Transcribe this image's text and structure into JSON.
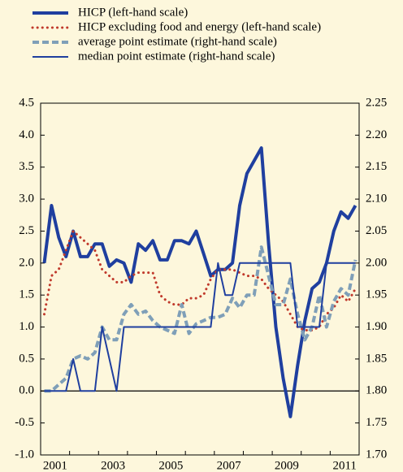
{
  "chart_data": {
    "type": "line",
    "categories": [
      null,
      "2001",
      null,
      null,
      null,
      null,
      null,
      null,
      null,
      "2003",
      null,
      null,
      null,
      null,
      null,
      null,
      null,
      "2005",
      null,
      null,
      null,
      null,
      null,
      null,
      null,
      "2007",
      null,
      null,
      null,
      null,
      null,
      null,
      null,
      "2009",
      null,
      null,
      null,
      null,
      null,
      null,
      null,
      "2011",
      null,
      null
    ],
    "series": [
      {
        "name": "HICP (left-hand scale)",
        "color": "#1f3f9f",
        "style": "thick",
        "axis": "y",
        "values": [
          2.0,
          2.9,
          2.4,
          2.1,
          2.5,
          2.1,
          2.1,
          2.3,
          2.3,
          1.95,
          2.05,
          2.0,
          1.7,
          2.3,
          2.2,
          2.35,
          2.05,
          2.05,
          2.35,
          2.35,
          2.3,
          2.5,
          2.15,
          1.8,
          1.9,
          1.9,
          2.0,
          2.9,
          3.4,
          3.6,
          3.8,
          2.3,
          1.0,
          0.2,
          -0.4,
          0.4,
          1.1,
          1.6,
          1.7,
          2.0,
          2.5,
          2.8,
          2.7,
          2.9
        ]
      },
      {
        "name": "HICP excluding food and energy (left-hand scale)",
        "color": "#c0392b",
        "style": "dotted",
        "axis": "y",
        "values": [
          1.2,
          1.8,
          1.9,
          2.2,
          2.5,
          2.4,
          2.3,
          2.2,
          1.9,
          1.8,
          1.7,
          1.7,
          1.8,
          1.85,
          1.85,
          1.85,
          1.5,
          1.4,
          1.35,
          1.35,
          1.45,
          1.45,
          1.5,
          1.75,
          1.9,
          1.9,
          1.9,
          1.85,
          1.8,
          1.8,
          1.75,
          1.6,
          1.5,
          1.4,
          1.2,
          1.0,
          0.95,
          0.95,
          1.0,
          1.2,
          1.3,
          1.5,
          1.4,
          1.6
        ]
      },
      {
        "name": "average point estimate (right-hand scale)",
        "color": "#7f9fb8",
        "style": "dashed",
        "axis": "y2",
        "values": [
          1.8,
          1.8,
          1.81,
          1.82,
          1.85,
          1.855,
          1.85,
          1.86,
          1.9,
          1.88,
          1.88,
          1.92,
          1.935,
          1.92,
          1.925,
          1.91,
          1.9,
          1.895,
          1.89,
          1.935,
          1.89,
          1.905,
          1.91,
          1.915,
          1.915,
          1.92,
          1.945,
          1.93,
          1.95,
          1.95,
          2.025,
          1.98,
          1.935,
          1.935,
          1.975,
          1.92,
          1.88,
          1.9,
          1.95,
          1.9,
          1.94,
          1.96,
          1.95,
          2.005
        ]
      },
      {
        "name": "median point estimate (right-hand scale)",
        "color": "#1f3f9f",
        "style": "thin",
        "axis": "y2",
        "values": [
          1.8,
          1.8,
          1.8,
          1.8,
          1.85,
          1.8,
          1.8,
          1.8,
          1.9,
          1.85,
          1.8,
          1.9,
          1.9,
          1.9,
          1.9,
          1.9,
          1.9,
          1.9,
          1.9,
          1.9,
          1.9,
          1.9,
          1.9,
          1.9,
          2.0,
          1.95,
          1.95,
          2.0,
          2.0,
          2.0,
          2.0,
          2.0,
          2.0,
          2.0,
          2.0,
          1.9,
          1.9,
          1.9,
          1.9,
          2.0,
          2.0,
          2.0,
          2.0,
          2.0
        ]
      }
    ],
    "ylim": [
      -1.0,
      4.5
    ],
    "yticks": [
      4.5,
      {
        "value": 4.0,
        "label": "4.0"
      },
      3.5,
      {
        "value": 3.0,
        "label": "3.0"
      },
      2.5,
      {
        "value": 2.0,
        "label": "2.0"
      },
      1.5,
      {
        "value": 1.0,
        "label": "1.0"
      },
      0.5,
      {
        "value": 0.0,
        "label": "0.0"
      },
      -0.5,
      {
        "value": -1.0,
        "label": "-1.0"
      }
    ],
    "y2lim": [
      1.7,
      2.25
    ],
    "y2ticks": [
      2.25,
      {
        "value": 2.2,
        "label": "2.20"
      },
      2.15,
      {
        "value": 2.1,
        "label": "2.10"
      },
      2.05,
      {
        "value": 2.0,
        "label": "2.00"
      },
      1.95,
      {
        "value": 1.9,
        "label": "1.90"
      },
      1.85,
      {
        "value": 1.8,
        "label": "1.80"
      },
      1.75,
      {
        "value": 1.7,
        "label": "1.70"
      }
    ]
  }
}
